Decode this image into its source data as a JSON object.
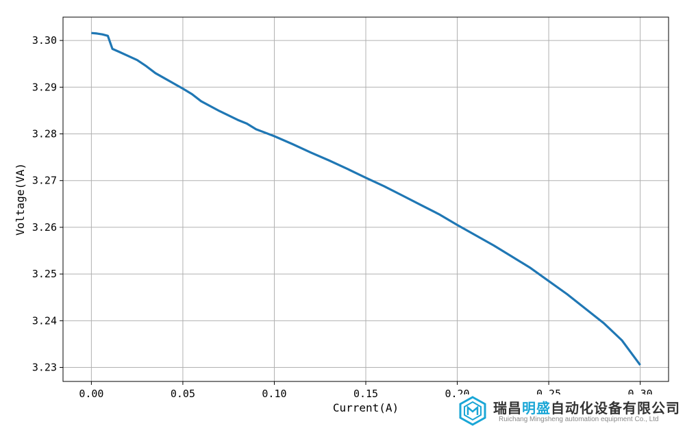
{
  "chart_data": {
    "type": "line",
    "xlabel": "Current(A)",
    "ylabel": "Voltage(VA)",
    "xlim": [
      -0.0155,
      0.3155
    ],
    "ylim": [
      3.227,
      3.305
    ],
    "xticks": [
      0.0,
      0.05,
      0.1,
      0.15,
      0.2,
      0.25,
      0.3
    ],
    "xtick_labels": [
      "0.00",
      "0.05",
      "0.10",
      "0.15",
      "0.20",
      "0.25",
      "0.30"
    ],
    "yticks": [
      3.23,
      3.24,
      3.25,
      3.26,
      3.27,
      3.28,
      3.29,
      3.3
    ],
    "ytick_labels": [
      "3.23",
      "3.24",
      "3.25",
      "3.26",
      "3.27",
      "3.28",
      "3.29",
      "3.30"
    ],
    "grid": true,
    "line_color": "#1f77b4",
    "series": [
      {
        "x": [
          0.0,
          0.003,
          0.006,
          0.009,
          0.0115,
          0.015,
          0.02,
          0.025,
          0.03,
          0.035,
          0.04,
          0.045,
          0.05,
          0.055,
          0.06,
          0.07,
          0.08,
          0.085,
          0.09,
          0.1,
          0.11,
          0.12,
          0.13,
          0.14,
          0.15,
          0.16,
          0.17,
          0.18,
          0.19,
          0.2,
          0.21,
          0.22,
          0.23,
          0.24,
          0.25,
          0.26,
          0.27,
          0.28,
          0.29,
          0.3
        ],
        "y": [
          3.3016,
          3.3015,
          3.3013,
          3.301,
          3.2982,
          3.2976,
          3.2967,
          3.2958,
          3.2945,
          3.293,
          3.2919,
          3.2908,
          3.2897,
          3.2885,
          3.287,
          3.2849,
          3.283,
          3.2822,
          3.281,
          3.2795,
          3.2778,
          3.276,
          3.2743,
          3.2725,
          3.2706,
          3.2688,
          3.2668,
          3.2648,
          3.2628,
          3.2605,
          3.2583,
          3.2561,
          3.2537,
          3.2513,
          3.2485,
          3.2457,
          3.2426,
          3.2395,
          3.2358,
          3.2305
        ]
      }
    ]
  },
  "logo": {
    "name_part1": "瑞昌",
    "name_part2": "明盛",
    "name_part3": "自动化设备有限公司",
    "subtitle": "Ruichang Mingsheng automation equipment Co., Ltd"
  }
}
